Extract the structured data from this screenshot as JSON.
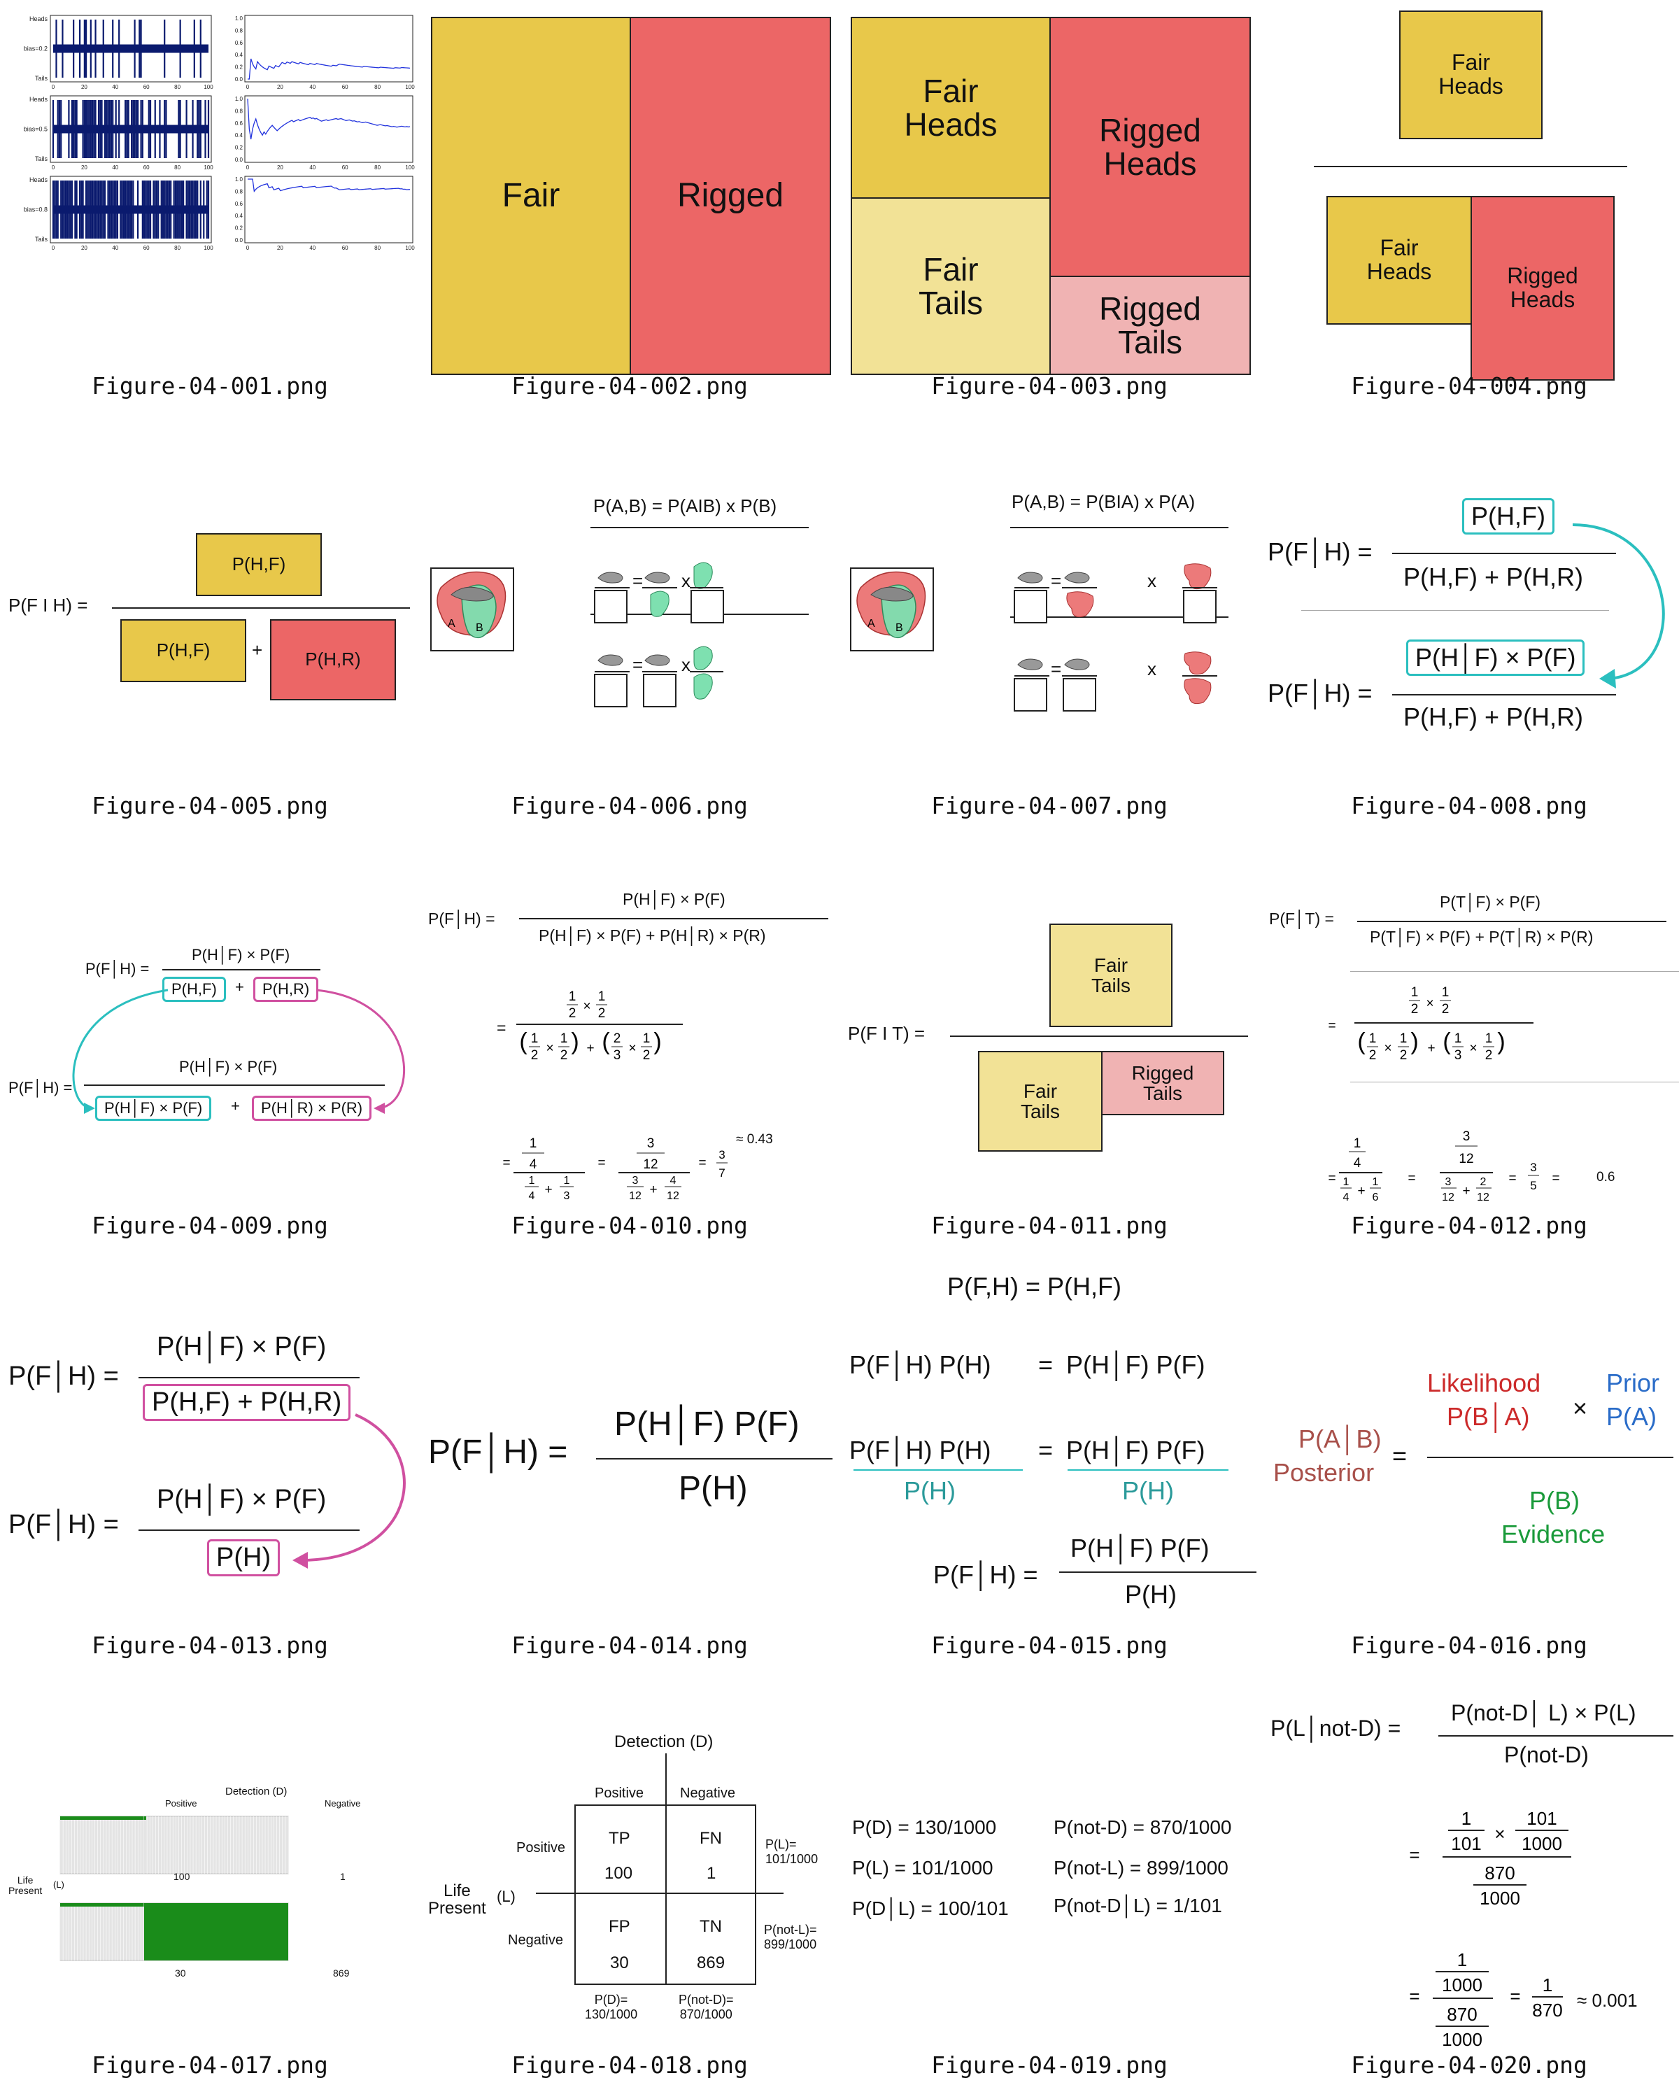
{
  "captions": [
    "Figure-04-001.png",
    "Figure-04-002.png",
    "Figure-04-003.png",
    "Figure-04-004.png",
    "Figure-04-005.png",
    "Figure-04-006.png",
    "Figure-04-007.png",
    "Figure-04-008.png",
    "Figure-04-009.png",
    "Figure-04-010.png",
    "Figure-04-011.png",
    "Figure-04-012.png",
    "Figure-04-013.png",
    "Figure-04-014.png",
    "Figure-04-015.png",
    "Figure-04-016.png",
    "Figure-04-017.png",
    "Figure-04-018.png",
    "Figure-04-019.png",
    "Figure-04-020.png"
  ],
  "colors": {
    "fair": "#e8c84a",
    "fair_light": "#f2e296",
    "rigged": "#ec6666",
    "rigged_light": "#f0b3b3",
    "teal": "#2bbfbf",
    "pink": "#d050a0",
    "navy": "#0a1a6e",
    "green": "#1a8c1a"
  },
  "fig1": {
    "rows": [
      {
        "top": "Heads",
        "mid": "bias=0.2",
        "bot": "Tails",
        "bias": 0.2
      },
      {
        "top": "Heads",
        "mid": "bias=0.5",
        "bot": "Tails",
        "bias": 0.5
      },
      {
        "top": "Heads",
        "mid": "bias=0.8",
        "bot": "Tails",
        "bias": 0.8
      }
    ],
    "xticks": [
      "0",
      "20",
      "40",
      "60",
      "80",
      "100"
    ],
    "yticks": [
      "0.0",
      "0.2",
      "0.4",
      "0.6",
      "0.8",
      "1.0"
    ]
  },
  "fig2": {
    "fair": "Fair",
    "rigged": "Rigged"
  },
  "fig3": {
    "fh": "Fair\nHeads",
    "ft": "Fair\nTails",
    "rh": "Rigged\nHeads",
    "rt": "Rigged\nTails"
  },
  "fig4": {
    "top": "Fair\nHeads",
    "bl": "Fair\nHeads",
    "br": "Rigged\nHeads"
  },
  "fig5": {
    "lhs": "P(F I H) =",
    "num": "P(H,F)",
    "d1": "P(H,F)",
    "plus": "+",
    "d2": "P(H,R)"
  },
  "fig6": {
    "header": "P(A,B)  =  P(AIB)    x     P(B)",
    "eq": "=",
    "x": "x",
    "a": "A",
    "b": "B"
  },
  "fig7": {
    "header": "P(A,B)  =  P(BIA)    x     P(A)",
    "eq": "=",
    "x": "x",
    "a": "A",
    "b": "B"
  },
  "fig8": {
    "lhs1": "P(F│H) =",
    "num1": "P(H,F)",
    "den1": "P(H,F) + P(H,R)",
    "lhs2": "P(F│H) =",
    "num2": "P(H│F) × P(F)",
    "den2": "P(H,F) + P(H,R)"
  },
  "fig9": {
    "lhs1": "P(F│H) =",
    "num1": "P(H│F) × P(F)",
    "d1a": "P(H,F)",
    "plus": "+",
    "d1b": "P(H,R)",
    "lhs2": "P(F│H) =",
    "num2": "P(H│F) × P(F)",
    "d2a": "P(H│F) × P(F)",
    "d2b": "P(H│R) × P(R)"
  },
  "fig10": {
    "lhs": "P(F│H) =",
    "num": "P(H│F) × P(F)",
    "den": "P(H│F) × P(F) + P(H│R) × P(R)",
    "eq": "=",
    "half": "1",
    "two": "2",
    "three": "3",
    "quarter_n": "1",
    "quarter_d": "4",
    "third_n": "1",
    "third_d": "3",
    "a_n": "3",
    "a_d": "12",
    "b_n": "4",
    "b_d": "12",
    "res_n": "3",
    "res_d": "7",
    "approx": "≈ 0.43"
  },
  "fig11": {
    "lhs": "P(F I T) =",
    "top": "Fair\nTails",
    "bl": "Fair\nTails",
    "br": "Rigged\nTails"
  },
  "fig12": {
    "lhs": "P(F│T) =",
    "num": "P(T│F) × P(F)",
    "den": "P(T│F) × P(F) + P(T│R) × P(R)",
    "sixth_d": "6",
    "res_n": "3",
    "res_d": "5",
    "res": "0.6",
    "two_n": "2"
  },
  "fig13": {
    "lhs1": "P(F│H) =",
    "num1": "P(H│F) × P(F)",
    "den1": "P(H,F) + P(H,R)",
    "lhs2": "P(F│H) =",
    "num2": "P(H│F) × P(F)",
    "den2": "P(H)"
  },
  "fig14": {
    "lhs": "P(F│H) =",
    "num": "P(H│F)  P(F)",
    "den": "P(H)"
  },
  "fig15": {
    "l1": "P(F,H)  =  P(H,F)",
    "l2a": "P(F│H)  P(H)",
    "l2b": "P(H│F)  P(F)",
    "eq": "=",
    "ph": "P(H)",
    "lhs": "P(F│H)  =",
    "num": "P(H│F)  P(F)",
    "den": "P(H)"
  },
  "fig16": {
    "likelihood": "Likelihood",
    "pba": "P(B│A)",
    "times": "×",
    "prior": "Prior",
    "pa": "P(A)",
    "pab": "P(A│B)",
    "posterior": "Posterior",
    "eq": "=",
    "pb": "P(B)",
    "evidence": "Evidence"
  },
  "fig17": {
    "detection": "Detection (D)",
    "positive": "Positive",
    "negative": "Negative",
    "life": "Life\nPresent",
    "l": "(L)",
    "tp": "100",
    "fn": "1",
    "fp": "30",
    "tn": "869"
  },
  "fig18": {
    "detection": "Detection (D)",
    "positive": "Positive",
    "negative": "Negative",
    "life": "Life\nPresent",
    "l": "(L)",
    "tp": "TP",
    "tpv": "100",
    "fn": "FN",
    "fnv": "1",
    "fp": "FP",
    "fpv": "30",
    "tn": "TN",
    "tnv": "869",
    "pl": "P(L)=\n101/1000",
    "pnl": "P(not-L)=\n899/1000",
    "pd": "P(D)=\n130/1000",
    "pnd": "P(not-D)=\n870/1000"
  },
  "fig19": {
    "a1": "P(D)  = 130/1000",
    "a2": "P(L)  = 101/1000",
    "a3": "P(D│L)  = 100/101",
    "b1": "P(not-D) = 870/1000",
    "b2": "P(not-L) = 899/1000",
    "b3": "P(not-D│L)  = 1/101"
  },
  "fig20": {
    "lhs": "P(L│not-D)  =",
    "num": "P(not-D│ L) × P(L)",
    "den": "P(not-D)",
    "eq": "=",
    "one": "1",
    "n101": "101",
    "n1000": "1000",
    "n870": "870",
    "times": "×",
    "approx": "≈ 0.001"
  }
}
